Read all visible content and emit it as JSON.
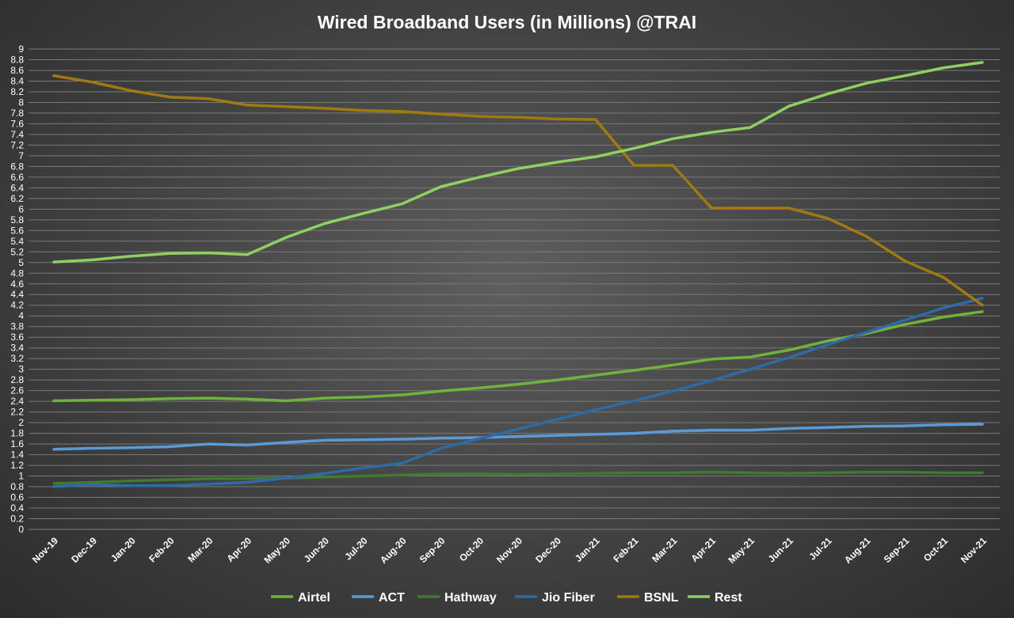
{
  "chart_data": {
    "type": "line",
    "title": "Wired Broadband Users (in Millions) @TRAI",
    "xlabel": "",
    "ylabel": "",
    "ylim": [
      0,
      9
    ],
    "ytick_step": 0.2,
    "grid": true,
    "legend_position": "bottom",
    "categories": [
      "Nov-19",
      "Dec-19",
      "Jan-20",
      "Feb-20",
      "Mar-20",
      "Apr-20",
      "May-20",
      "Jun-20",
      "Jul-20",
      "Aug-20",
      "Sep-20",
      "Oct-20",
      "Nov-20",
      "Dec-20",
      "Jan-21",
      "Feb-21",
      "Mar-21",
      "Apr-21",
      "May-21",
      "Jun-21",
      "Jul-21",
      "Aug-21",
      "Sep-21",
      "Oct-21",
      "Nov-21"
    ],
    "series": [
      {
        "name": "Airtel",
        "color": "#6fb33e",
        "values": [
          2.41,
          2.42,
          2.43,
          2.45,
          2.46,
          2.44,
          2.41,
          2.46,
          2.48,
          2.52,
          2.59,
          2.65,
          2.72,
          2.8,
          2.89,
          2.98,
          3.08,
          3.19,
          3.23,
          3.36,
          3.53,
          3.67,
          3.84,
          3.98,
          4.08
        ]
      },
      {
        "name": "ACT",
        "color": "#5b9bd5",
        "values": [
          1.5,
          1.52,
          1.53,
          1.55,
          1.6,
          1.58,
          1.63,
          1.67,
          1.68,
          1.69,
          1.71,
          1.72,
          1.74,
          1.76,
          1.78,
          1.8,
          1.84,
          1.86,
          1.86,
          1.89,
          1.91,
          1.93,
          1.94,
          1.96,
          1.97
        ]
      },
      {
        "name": "Hathway",
        "color": "#3f7a2e",
        "values": [
          0.86,
          0.88,
          0.91,
          0.93,
          0.95,
          0.95,
          0.96,
          0.98,
          1.0,
          1.02,
          1.04,
          1.04,
          1.03,
          1.04,
          1.05,
          1.06,
          1.06,
          1.07,
          1.06,
          1.05,
          1.06,
          1.07,
          1.07,
          1.06,
          1.06
        ]
      },
      {
        "name": "Jio Fiber",
        "color": "#2e6aa6",
        "values": [
          0.8,
          0.84,
          0.82,
          0.82,
          0.85,
          0.88,
          0.96,
          1.05,
          1.15,
          1.24,
          1.52,
          1.7,
          1.88,
          2.06,
          2.24,
          2.41,
          2.59,
          2.79,
          3.0,
          3.22,
          3.46,
          3.69,
          3.92,
          4.15,
          4.33
        ]
      },
      {
        "name": "BSNL",
        "color": "#a07a0f",
        "values": [
          8.5,
          8.38,
          8.22,
          8.1,
          8.07,
          7.95,
          7.92,
          7.89,
          7.85,
          7.83,
          7.78,
          7.74,
          7.72,
          7.69,
          7.68,
          6.82,
          6.82,
          6.02,
          6.02,
          6.02,
          5.83,
          5.49,
          5.03,
          4.72,
          4.2
        ]
      },
      {
        "name": "Rest",
        "color": "#8fd062",
        "values": [
          5.01,
          5.05,
          5.12,
          5.17,
          5.18,
          5.15,
          5.47,
          5.73,
          5.92,
          6.1,
          6.42,
          6.6,
          6.76,
          6.88,
          6.98,
          7.14,
          7.32,
          7.44,
          7.53,
          7.93,
          8.16,
          8.36,
          8.5,
          8.65,
          8.75
        ]
      }
    ]
  }
}
